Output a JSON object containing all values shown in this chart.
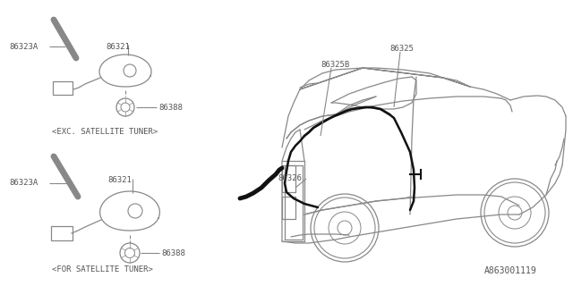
{
  "bg_color": "#ffffff",
  "line_color": "#888888",
  "thin_line": "#999999",
  "black_color": "#111111",
  "text_color": "#555555",
  "diagram_id": "A863001119",
  "label_exc": "<EXC. SATELLITE TUNER>",
  "label_for": "<FOR SATELLITE TUNER>",
  "figsize": [
    6.4,
    3.2
  ],
  "dpi": 100,
  "xlim": [
    0,
    640
  ],
  "ylim": [
    0,
    320
  ]
}
